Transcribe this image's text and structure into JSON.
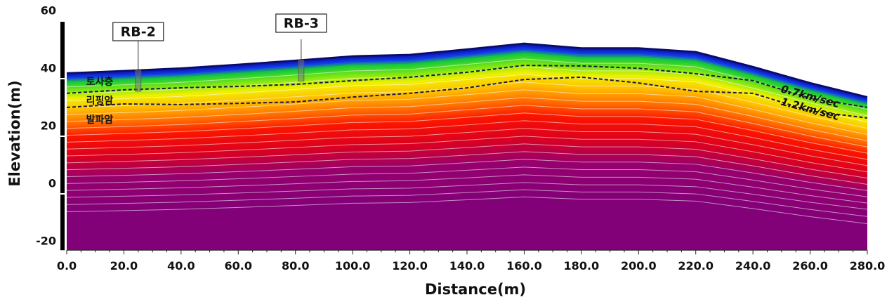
{
  "chart_data": {
    "type": "line",
    "x_label": "Distance(m)",
    "y_label": "Elevation(m)",
    "x": [
      0,
      20,
      40,
      60,
      80,
      100,
      120,
      140,
      160,
      180,
      200,
      220,
      240,
      260,
      280
    ],
    "series": [
      {
        "color": "#0a0a6a",
        "values": [
          38.5,
          39.3,
          40.2,
          41.5,
          42.9,
          44.4,
          44.9,
          46.8,
          48.8,
          47.2,
          47.2,
          45.9,
          40.7,
          35.1,
          30.2
        ]
      },
      {
        "name": "0.7km/sec",
        "color": "#1a1a3a",
        "values": [
          31.5,
          32.7,
          33.4,
          33.9,
          34.6,
          35.9,
          37.1,
          38.8,
          41.2,
          41.0,
          40.2,
          38.3,
          35.9,
          29.8,
          26.6
        ]
      },
      {
        "name": "1.2km/sec",
        "color": "#1a1a3a",
        "values": [
          26.6,
          27.8,
          27.6,
          28.0,
          28.5,
          30.2,
          31.5,
          33.4,
          36.3,
          37.1,
          35.1,
          32.2,
          31.5,
          25.4,
          22.9
        ]
      }
    ],
    "layers": [
      "토사층",
      "리핑암",
      "발파암"
    ],
    "boreholes": [
      {
        "label": "RB-2",
        "x": 25
      },
      {
        "label": "RB-3",
        "x": 82
      }
    ],
    "xlim": [
      0,
      280
    ],
    "ylim": [
      -23,
      60
    ],
    "xticks": [
      {
        "value": 0,
        "label": "0.0"
      },
      {
        "value": 20,
        "label": "20.0"
      },
      {
        "value": 40,
        "label": "40.0"
      },
      {
        "value": 60,
        "label": "60.0"
      },
      {
        "value": 80,
        "label": "80.0"
      },
      {
        "value": 100,
        "label": "100.0"
      },
      {
        "value": 120,
        "label": "120.0"
      },
      {
        "value": 140,
        "label": "140.0"
      },
      {
        "value": 160,
        "label": "160.0"
      },
      {
        "value": 180,
        "label": "180.0"
      },
      {
        "value": 200,
        "label": "200.0"
      },
      {
        "value": 220,
        "label": "220.0"
      },
      {
        "value": 240,
        "label": "240.0"
      },
      {
        "value": 260,
        "label": "260.0"
      },
      {
        "value": 280,
        "label": "280.0"
      }
    ],
    "yticks": [
      60,
      40,
      20,
      0,
      -20
    ]
  }
}
